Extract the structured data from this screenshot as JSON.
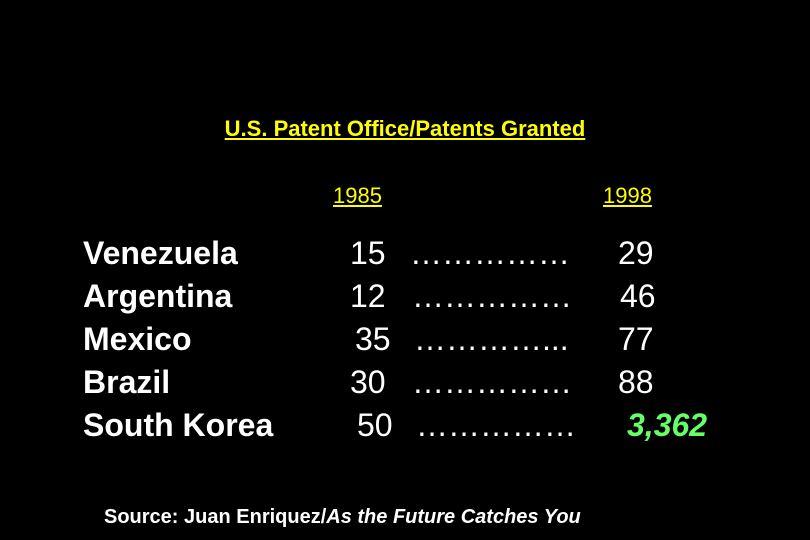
{
  "title": "U.S. Patent Office/Patents Granted",
  "columns": {
    "year1": "1985",
    "year2": "1998"
  },
  "rows": [
    {
      "country": "Venezuela",
      "v1985": "15",
      "dots": "……………",
      "v1998": "29"
    },
    {
      "country": "Argentina",
      "v1985": "12",
      "dots": "……………",
      "v1998": "46"
    },
    {
      "country": "Mexico",
      "v1985": "35",
      "dots": "…………...",
      "v1998": "77"
    },
    {
      "country": "Brazil",
      "v1985": "30",
      "dots": "……………",
      "v1998": "88"
    },
    {
      "country": "South Korea",
      "v1985": "50",
      "dots": "……………",
      "v1998": "3,362"
    }
  ],
  "source": {
    "prefix": "Source: Juan Enriquez/",
    "book": "As the Future Catches You"
  },
  "colors": {
    "background": "#000000",
    "header": "#ffff00",
    "text": "#ffffff",
    "highlight": "#66ff66"
  }
}
